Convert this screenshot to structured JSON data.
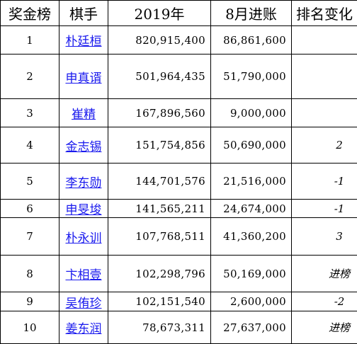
{
  "headers": {
    "rank": "奖金榜",
    "player": "棋手",
    "total_2019": "2019年",
    "august": "8月进账",
    "change": "排名变化"
  },
  "rows": [
    {
      "rank": "1",
      "player": "朴廷桓",
      "total_2019": "820,915,400",
      "august": "86,861,600",
      "change": ""
    },
    {
      "rank": "2",
      "player": "申真谞",
      "total_2019": "501,964,435",
      "august": "51,790,000",
      "change": ""
    },
    {
      "rank": "3",
      "player": "崔精",
      "total_2019": "167,896,560",
      "august": "9,000,000",
      "change": ""
    },
    {
      "rank": "4",
      "player": "金志锡",
      "total_2019": "151,754,856",
      "august": "50,690,000",
      "change": "2"
    },
    {
      "rank": "5",
      "player": "李东勋",
      "total_2019": "144,701,576",
      "august": "21,516,000",
      "change": "-1"
    },
    {
      "rank": "6",
      "player": "申旻埈",
      "total_2019": "141,565,211",
      "august": "24,674,000",
      "change": "-1"
    },
    {
      "rank": "7",
      "player": "朴永训",
      "total_2019": "107,768,511",
      "august": "41,360,200",
      "change": "3"
    },
    {
      "rank": "8",
      "player": "卞相壹",
      "total_2019": "102,298,796",
      "august": "50,169,000",
      "change": "进榜"
    },
    {
      "rank": "9",
      "player": "吴侑珍",
      "total_2019": "102,151,540",
      "august": "2,600,000",
      "change": "-2"
    },
    {
      "rank": "10",
      "player": "姜东润",
      "total_2019": "78,673,311",
      "august": "27,637,000",
      "change": "进榜"
    }
  ]
}
